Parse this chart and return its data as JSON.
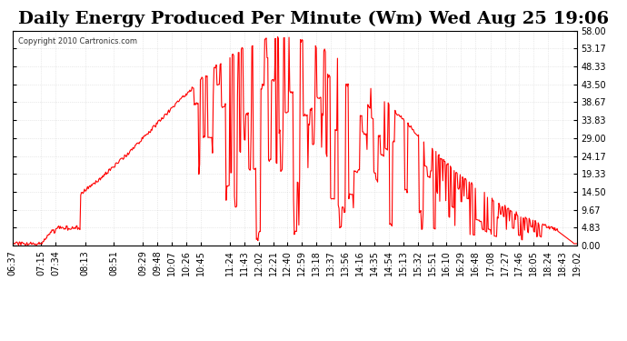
{
  "title": "Daily Energy Produced Per Minute (Wm) Wed Aug 25 19:06",
  "copyright": "Copyright 2010 Cartronics.com",
  "title_fontsize": 14,
  "y_ticks": [
    0.0,
    4.83,
    9.67,
    14.5,
    19.33,
    24.17,
    29.0,
    33.83,
    38.67,
    43.5,
    48.33,
    53.17,
    58.0
  ],
  "ylim": [
    0,
    58.0
  ],
  "line_color": "#ff0000",
  "bg_color": "#ffffff",
  "plot_bg_color": "#ffffff",
  "grid_color": "#cccccc",
  "border_color": "#000000",
  "x_tick_labels": [
    "06:37",
    "07:15",
    "07:34",
    "08:13",
    "08:51",
    "09:29",
    "09:48",
    "10:07",
    "10:26",
    "10:45",
    "11:24",
    "11:43",
    "12:02",
    "12:21",
    "12:40",
    "12:59",
    "13:18",
    "13:37",
    "13:56",
    "14:16",
    "14:35",
    "14:54",
    "15:13",
    "15:32",
    "15:51",
    "16:10",
    "16:29",
    "16:48",
    "17:08",
    "17:27",
    "17:46",
    "18:05",
    "18:24",
    "18:43",
    "19:02"
  ],
  "seed": 42
}
